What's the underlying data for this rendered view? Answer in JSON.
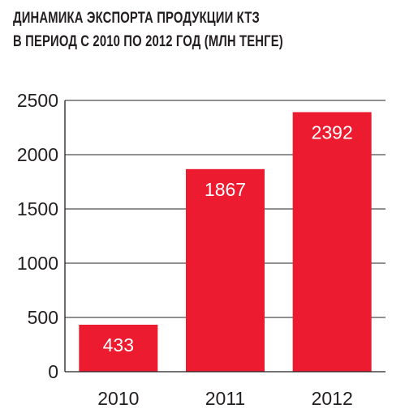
{
  "chart_title": {
    "line1": "ДИНАМИКА ЭКСПОРТА ПРОДУКЦИИ КТЗ",
    "line2": "В ПЕРИОД С 2010 ПО 2012 ГОД (МЛН ТЕНГЕ)"
  },
  "colors": {
    "bar": "#ec1b30",
    "grid": "#231f20",
    "text": "#231f20",
    "bar_label": "#ffffff"
  },
  "chart_data": {
    "type": "bar",
    "title": "ДИНАМИКА ЭКСПОРТА ПРОДУКЦИИ КТЗ В ПЕРИОД С 2010 ПО 2012 ГОД (МЛН ТЕНГЕ)",
    "categories": [
      "2010",
      "2011",
      "2012"
    ],
    "values": [
      433,
      1867,
      2392
    ],
    "data_labels": [
      "433",
      "1867",
      "2392"
    ],
    "ylim": [
      0,
      2500
    ],
    "yticks": [
      0,
      500,
      1000,
      1500,
      2000,
      2500
    ],
    "grid": true,
    "legend": "none",
    "xlabel": "",
    "ylabel": ""
  }
}
